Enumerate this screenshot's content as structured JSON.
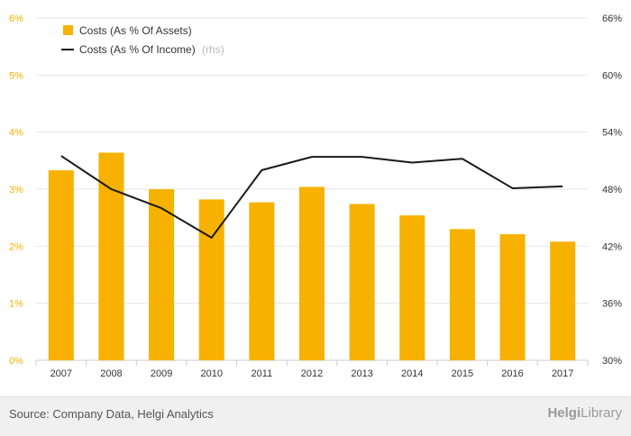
{
  "chart_data": {
    "type": "bar",
    "categories": [
      "2007",
      "2008",
      "2009",
      "2010",
      "2011",
      "2012",
      "2013",
      "2014",
      "2015",
      "2016",
      "2017"
    ],
    "series": [
      {
        "name": "Costs (As % Of Assets)",
        "type": "bar",
        "axis": "left",
        "color": "#f7b100",
        "values": [
          3.33,
          3.64,
          3.0,
          2.82,
          2.77,
          3.04,
          2.74,
          2.54,
          2.3,
          2.21,
          2.08
        ]
      },
      {
        "name": "Costs (As % Of Income)",
        "rhs_note": "(rhs)",
        "type": "line",
        "axis": "right",
        "color": "#1a1a1a",
        "values": [
          51.5,
          48.0,
          46.0,
          42.9,
          50.0,
          51.4,
          51.4,
          50.8,
          51.2,
          48.1,
          48.3
        ]
      }
    ],
    "yaxis_left": {
      "min": 0,
      "max": 6,
      "ticks": [
        "0%",
        "1%",
        "2%",
        "3%",
        "4%",
        "5%",
        "6%"
      ],
      "color": "#f7b100"
    },
    "yaxis_right": {
      "min": 30,
      "max": 66,
      "ticks": [
        "30%",
        "36%",
        "42%",
        "48%",
        "54%",
        "60%",
        "66%"
      ]
    },
    "grid": true,
    "legend_position": "top-left"
  },
  "footer": {
    "source": "Source: Company Data, Helgi Analytics",
    "brand_part1": "Helgi",
    "brand_part2": "Library"
  }
}
